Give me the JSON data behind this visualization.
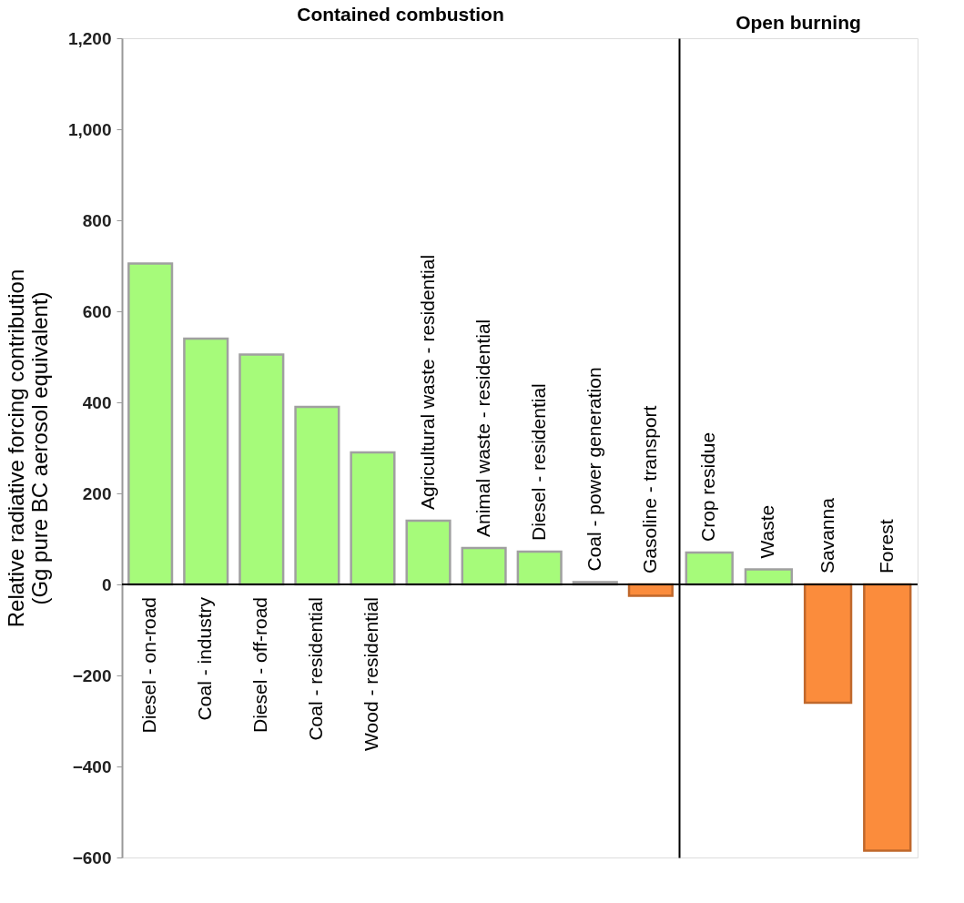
{
  "chart_data": [
    {
      "type": "bar",
      "title": "Contained combustion",
      "ylabel": "Relative radiative forcing contribution\n(Gg pure BC aerosol equivalent)",
      "categories": [
        "Diesel - on-road",
        "Coal - industry",
        "Diesel - off-road",
        "Coal - residential",
        "Wood - residential",
        "Agricultural waste - residential",
        "Animal waste - residential",
        "Diesel - residential",
        "Coal - power generation",
        "Gasoline - transport"
      ],
      "values": [
        705,
        540,
        505,
        390,
        290,
        140,
        80,
        72,
        5,
        -25
      ],
      "colors": [
        "#a6fb7a",
        "#a6fb7a",
        "#a6fb7a",
        "#a6fb7a",
        "#a6fb7a",
        "#a6fb7a",
        "#a6fb7a",
        "#a6fb7a",
        "#a6fb7a",
        "#fb8c3c"
      ],
      "ylim": [
        -600,
        1200
      ],
      "yticks": [
        -600,
        -400,
        -200,
        0,
        200,
        400,
        600,
        800,
        {
          "value": 1000,
          "label": "1,000"
        },
        {
          "value": 1200,
          "label": "1,200"
        }
      ],
      "grid": false
    },
    {
      "type": "bar",
      "title": "Open burning",
      "categories": [
        "Crop residue",
        "Waste",
        "Savanna",
        "Forest"
      ],
      "values": [
        70,
        33,
        -260,
        -585
      ],
      "colors": [
        "#a6fb7a",
        "#a6fb7a",
        "#fb8c3c",
        "#fb8c3c"
      ],
      "ylim": [
        -600,
        1200
      ],
      "tick_labels": false,
      "grid": false
    }
  ]
}
